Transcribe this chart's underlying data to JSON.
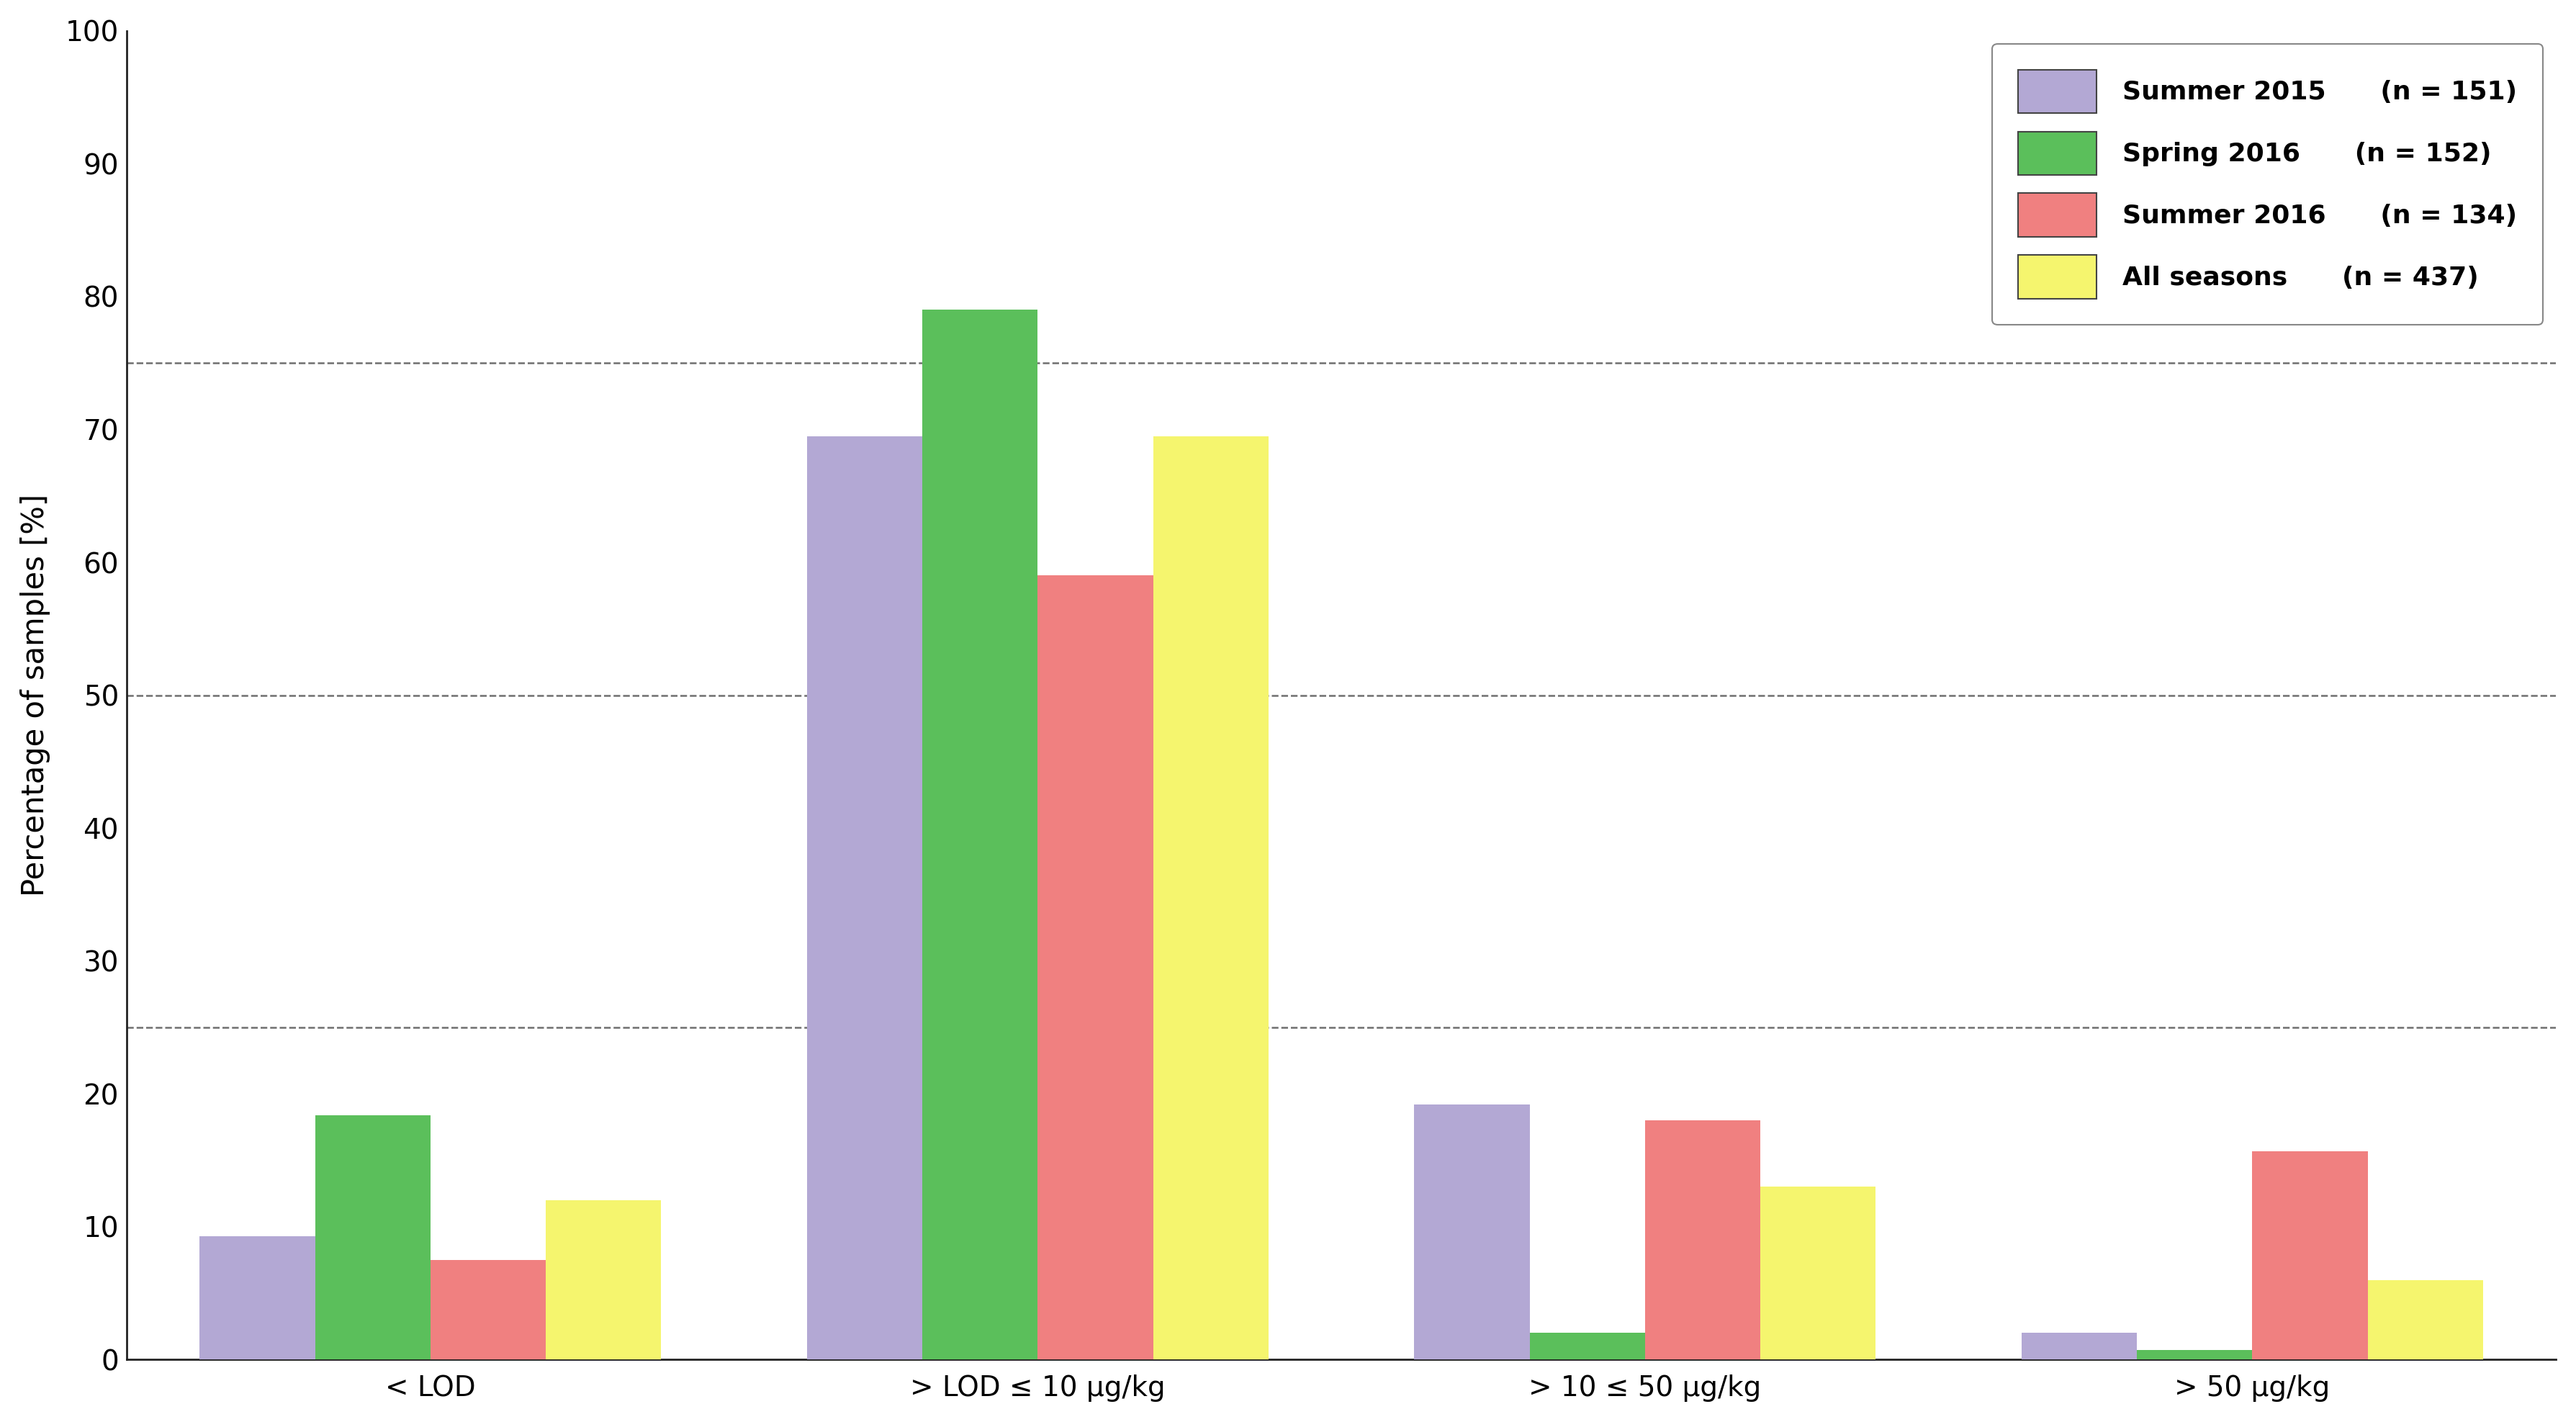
{
  "categories": [
    "< LOD",
    "> LOD ≤ 10 μg/kg",
    "> 10 ≤ 50 μg/kg",
    "> 50 μg/kg"
  ],
  "series": [
    {
      "label": "Summer 2015",
      "n": 151,
      "values": [
        9.3,
        69.5,
        19.2,
        2.0
      ],
      "color": "#b3a8d4"
    },
    {
      "label": "Spring 2016",
      "n": 152,
      "values": [
        18.4,
        79.0,
        2.0,
        0.7
      ],
      "color": "#5bbf5b"
    },
    {
      "label": "Summer 2016",
      "n": 134,
      "values": [
        7.5,
        59.0,
        18.0,
        15.7
      ],
      "color": "#f08080"
    },
    {
      "label": "All seasons",
      "n": 437,
      "values": [
        12.0,
        69.5,
        13.0,
        6.0
      ],
      "color": "#f5f56e"
    }
  ],
  "ylabel": "Percentage of samples [%]",
  "ylim": [
    0,
    100
  ],
  "yticks": [
    0,
    10,
    20,
    30,
    40,
    50,
    60,
    70,
    80,
    90,
    100
  ],
  "grid_lines": [
    25,
    50,
    75
  ],
  "bar_width": 0.19,
  "background_color": "#ffffff",
  "axis_color": "#222222",
  "tick_fontsize": 28,
  "label_fontsize": 30,
  "legend_fontsize": 26
}
